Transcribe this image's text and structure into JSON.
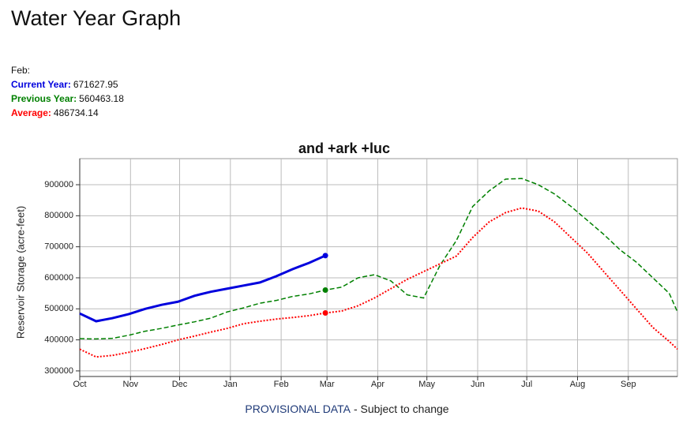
{
  "page_title": "Water Year Graph",
  "readout": {
    "month": "Feb:",
    "lines": [
      {
        "label": "Current Year:",
        "series": 0
      },
      {
        "label": "Previous Year:",
        "series": 1
      },
      {
        "label": "Average:",
        "series": 2
      }
    ]
  },
  "chart_data": {
    "type": "line",
    "title": "and +ark +luc",
    "y_label": "Reservoir Storage (acre-feet)",
    "x": [
      0,
      10,
      20,
      30,
      40,
      50,
      60,
      70,
      80,
      90,
      100,
      110,
      120,
      130,
      140,
      150,
      160,
      170,
      180,
      190,
      200,
      210,
      220,
      230,
      240,
      250,
      260,
      270,
      280,
      290,
      300,
      310,
      320,
      330,
      340,
      350,
      360,
      365
    ],
    "xlim": [
      0,
      365
    ],
    "xticks": [
      {
        "value": 0,
        "label": "Oct"
      },
      {
        "value": 31,
        "label": "Nov"
      },
      {
        "value": 61,
        "label": "Dec"
      },
      {
        "value": 92,
        "label": "Jan"
      },
      {
        "value": 123,
        "label": "Feb"
      },
      {
        "value": 151,
        "label": "Mar"
      },
      {
        "value": 182,
        "label": "Apr"
      },
      {
        "value": 212,
        "label": "May"
      },
      {
        "value": 243,
        "label": "Jun"
      },
      {
        "value": 273,
        "label": "Jul"
      },
      {
        "value": 304,
        "label": "Aug"
      },
      {
        "value": 335,
        "label": "Sep"
      }
    ],
    "ylim": [
      282000,
      984000
    ],
    "yticks": [
      300000,
      400000,
      500000,
      600000,
      700000,
      800000,
      900000
    ],
    "grid": true,
    "series": [
      {
        "color": "#0000dd",
        "style": "solid",
        "values": [
          485000,
          460000,
          470000,
          483000,
          500000,
          513000,
          523000,
          542000,
          555000,
          565000,
          575000,
          585000,
          605000,
          628000,
          648000,
          671627.95,
          null,
          null,
          null,
          null,
          null,
          null,
          null,
          null,
          null,
          null,
          null,
          null,
          null,
          null,
          null,
          null,
          null,
          null,
          null,
          null,
          null,
          null
        ]
      },
      {
        "color": "#008000",
        "style": "dashed",
        "values": [
          404000,
          403000,
          405000,
          415000,
          428000,
          437000,
          448000,
          458000,
          470000,
          490000,
          503000,
          518000,
          527000,
          540000,
          548000,
          560463.18,
          570000,
          600000,
          610000,
          590000,
          545000,
          535000,
          640000,
          720000,
          830000,
          880000,
          918000,
          920000,
          900000,
          870000,
          830000,
          785000,
          740000,
          690000,
          650000,
          600000,
          550000,
          490000
        ]
      },
      {
        "color": "#ff0000",
        "style": "dotted",
        "values": [
          370000,
          345000,
          350000,
          360000,
          372000,
          385000,
          400000,
          412000,
          425000,
          437000,
          452000,
          460000,
          467000,
          472000,
          478000,
          486734.14,
          493000,
          510000,
          535000,
          565000,
          595000,
          620000,
          645000,
          670000,
          730000,
          780000,
          810000,
          825000,
          815000,
          780000,
          730000,
          680000,
          620000,
          560000,
          500000,
          440000,
          395000,
          370000
        ]
      }
    ],
    "marker_index": 15
  },
  "footer": {
    "highlight": "PROVISIONAL DATA",
    "text": "- Subject to change"
  }
}
